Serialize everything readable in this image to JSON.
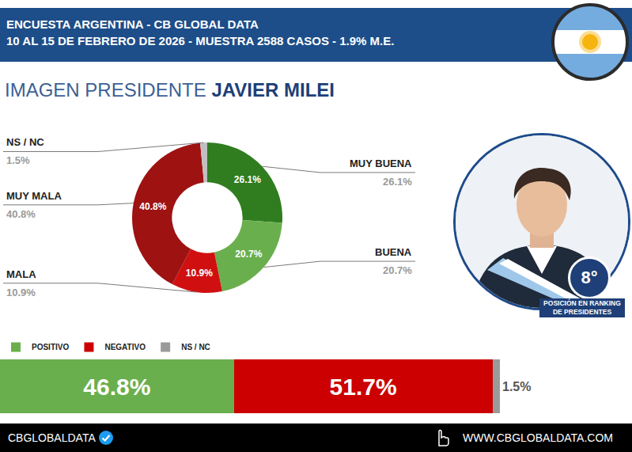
{
  "header": {
    "line1": "ENCUESTA ARGENTINA - CB GLOBAL DATA",
    "line2": "10 AL 15 DE FEBRERO DE 2026 - MUESTRA 2588 CASOS - 1.9% M.E."
  },
  "ranking": {
    "text": "8°",
    "label": "POSICIÓN EN RANKING DE PRESIDENTES"
  },
  "footer": {
    "left": "CBGLOBALDATA",
    "right": "WWW.CBGLOBALDATA.COM"
  },
  "chart_data": [
    {
      "type": "pie",
      "title": "IMAGEN PRESIDENTE",
      "subtitle": "JAVIER MILEI",
      "categories": [
        "MUY BUENA",
        "BUENA",
        "MALA",
        "MUY MALA",
        "NS / NC"
      ],
      "values": [
        26.1,
        20.7,
        10.9,
        40.8,
        1.5
      ],
      "value_labels": [
        "26.1%",
        "20.7%",
        "10.9%",
        "40.8%",
        "1.5%"
      ],
      "colors": [
        "#2f7d1f",
        "#6aaf4e",
        "#d01010",
        "#9e1212",
        "#c0c0c0"
      ],
      "data_labels": true
    },
    {
      "type": "bar",
      "orientation": "horizontal",
      "stacked": true,
      "categories": [
        null
      ],
      "series": [
        {
          "name": "POSITIVO",
          "color": "#6aaf4e",
          "values": [
            46.8
          ],
          "value_labels": [
            "46.8%"
          ]
        },
        {
          "name": "NEGATIVO",
          "color": "#cc0000",
          "values": [
            51.7
          ],
          "value_labels": [
            "51.7%"
          ]
        },
        {
          "name": "NS / NC",
          "color": "#9a9a9a",
          "values": [
            1.5
          ],
          "value_labels": [
            "1.5%"
          ]
        }
      ],
      "xlim": [
        0,
        100
      ],
      "tick_labels": false,
      "grid": false,
      "legend": "top left",
      "data_labels": true
    }
  ]
}
